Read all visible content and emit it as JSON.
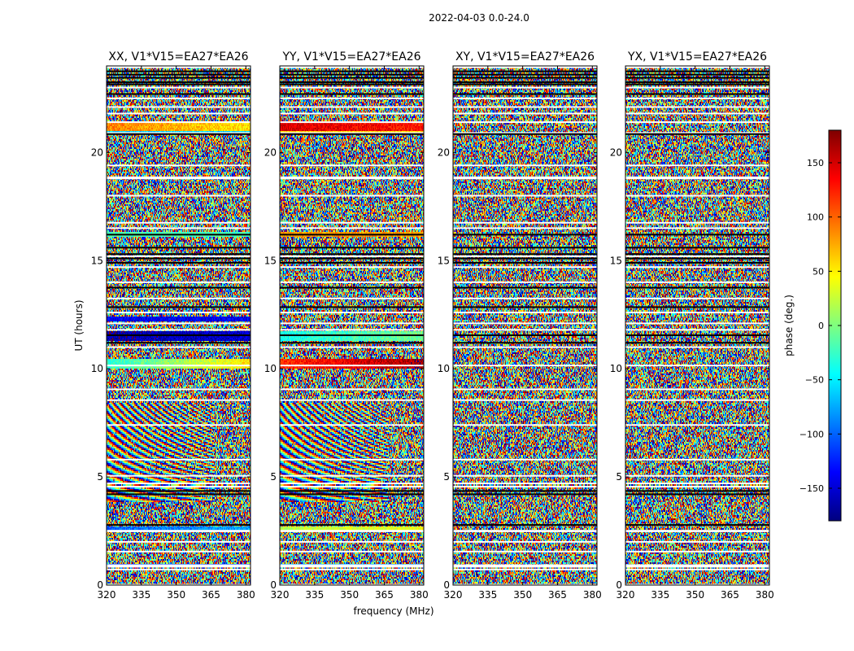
{
  "figure": {
    "suptitle": "2022-04-03 0.0-24.0"
  },
  "chart_data": {
    "type": "heatmap",
    "xlabel": "frequency (MHz)",
    "ylabel": "UT (hours)",
    "xlim": [
      320,
      382
    ],
    "ylim": [
      0,
      24
    ],
    "xticks": [
      320,
      335,
      350,
      365,
      380
    ],
    "yticks": [
      0,
      5,
      10,
      15,
      20
    ],
    "colorbar": {
      "label": "phase (deg.)",
      "range": [
        -180,
        180
      ],
      "ticks": [
        150,
        100,
        50,
        0,
        -50,
        -100,
        -150
      ],
      "tick_labels": [
        "150",
        "100",
        "50",
        "0",
        "−50",
        "−100",
        "−150"
      ],
      "colormap": "jet",
      "colors": [
        "#00007f",
        "#0000ff",
        "#007fff",
        "#00ffff",
        "#7fff7f",
        "#ffff00",
        "#ff7f00",
        "#ff0000",
        "#7f0000"
      ]
    },
    "panels": [
      {
        "title": "XX, V1*V15=EA27*EA26",
        "coherent_bands": [
          {
            "y0": 21.0,
            "y1": 21.45,
            "phase": 90,
            "freq_slope": -0.6
          },
          {
            "y0": 20.95,
            "y1": 21.15,
            "phase": -60,
            "freq_slope": 0
          },
          {
            "y0": 16.1,
            "y1": 16.3,
            "phase": -20,
            "freq_slope": 0
          },
          {
            "y0": 12.2,
            "y1": 12.4,
            "phase": -140,
            "freq_slope": 0
          },
          {
            "y0": 11.3,
            "y1": 11.7,
            "phase": -165,
            "freq_slope": 0.2
          },
          {
            "y0": 10.0,
            "y1": 10.45,
            "phase": -30,
            "freq_slope": 1.4
          },
          {
            "y0": 2.45,
            "y1": 2.7,
            "phase": -100,
            "freq_slope": 0.4
          },
          {
            "y0": 0.8,
            "y1": 0.95,
            "phase": -110,
            "freq_slope": 0
          }
        ],
        "fringe_region": [
          3.8,
          8.4
        ]
      },
      {
        "title": "YY, V1*V15=EA27*EA26",
        "coherent_bands": [
          {
            "y0": 21.0,
            "y1": 21.45,
            "phase": 150,
            "freq_slope": -0.4
          },
          {
            "y0": 20.95,
            "y1": 21.15,
            "phase": 60,
            "freq_slope": 0
          },
          {
            "y0": 16.1,
            "y1": 16.3,
            "phase": 80,
            "freq_slope": 0
          },
          {
            "y0": 11.3,
            "y1": 11.7,
            "phase": -40,
            "freq_slope": 0.6
          },
          {
            "y0": 10.0,
            "y1": 10.45,
            "phase": 120,
            "freq_slope": 0.8
          },
          {
            "y0": 2.45,
            "y1": 2.7,
            "phase": 20,
            "freq_slope": 0.3
          },
          {
            "y0": 0.8,
            "y1": 0.95,
            "phase": -80,
            "freq_slope": 0
          }
        ],
        "fringe_region": [
          3.8,
          8.4
        ]
      },
      {
        "title": "XY, V1*V15=EA27*EA26",
        "coherent_bands": [],
        "fringe_region": null
      },
      {
        "title": "YX, V1*V15=EA27*EA26",
        "coherent_bands": [],
        "fringe_region": null
      }
    ],
    "white_flag_rows": [
      0.72,
      0.85,
      0.92,
      1.55,
      2.0,
      4.55,
      4.7,
      5.05,
      5.8,
      7.4,
      8.55,
      9.05,
      10.15,
      11.0,
      11.8,
      12.1,
      12.6,
      13.25,
      14.0,
      14.7,
      15.2,
      16.5,
      16.75,
      18.0,
      18.8,
      18.85,
      19.4,
      20.9,
      21.4,
      21.8,
      22.1,
      22.5,
      23.0
    ],
    "black_flag_rows": [
      2.78,
      4.2,
      4.35,
      11.2,
      11.55,
      12.85,
      13.75,
      14.9,
      15.1,
      15.3,
      15.6,
      16.2,
      20.85,
      22.7,
      23.15,
      23.25,
      23.45,
      23.6,
      23.75
    ],
    "flagged_gaps": [
      [
        23.9,
        24.0
      ],
      [
        2.45,
        2.55
      ],
      [
        0.0,
        0.05
      ]
    ]
  }
}
